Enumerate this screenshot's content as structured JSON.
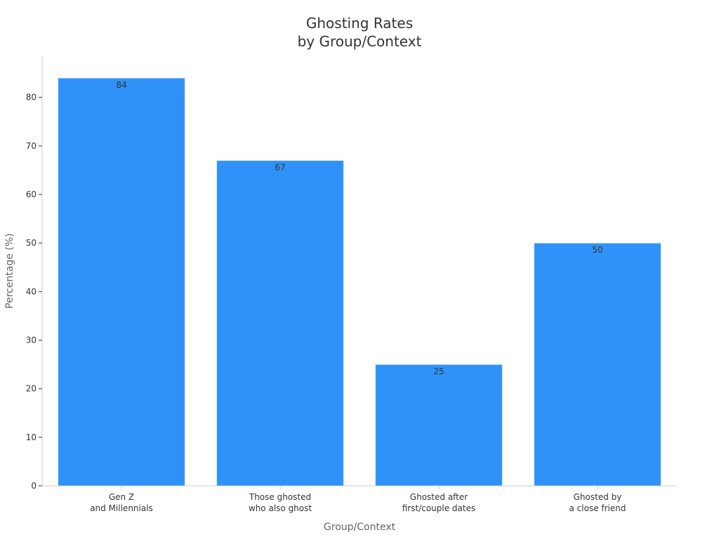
{
  "chart_data": {
    "type": "bar",
    "title_lines": [
      "Ghosting Rates",
      "by Group/Context"
    ],
    "xlabel": "Group/Context",
    "ylabel": "Percentage (%)",
    "categories": [
      [
        "Gen Z",
        "and Millennials"
      ],
      [
        "Those ghosted",
        "who also ghost"
      ],
      [
        "Ghosted after",
        "first/couple dates"
      ],
      [
        "Ghosted by",
        "a close friend"
      ]
    ],
    "values": [
      84,
      67,
      25,
      50
    ],
    "data_labels": [
      "84",
      "67",
      "25",
      "50"
    ],
    "ylim": [
      0,
      88
    ],
    "yticks": [
      0,
      10,
      20,
      30,
      40,
      50,
      60,
      70,
      80
    ],
    "bar_color": "#2f92f8",
    "bar_edge_color": "#d6e8fb",
    "axis_color": "#cccccc",
    "text_color": "#333333",
    "label_color": "#666666",
    "grid": false,
    "legend": "none"
  }
}
